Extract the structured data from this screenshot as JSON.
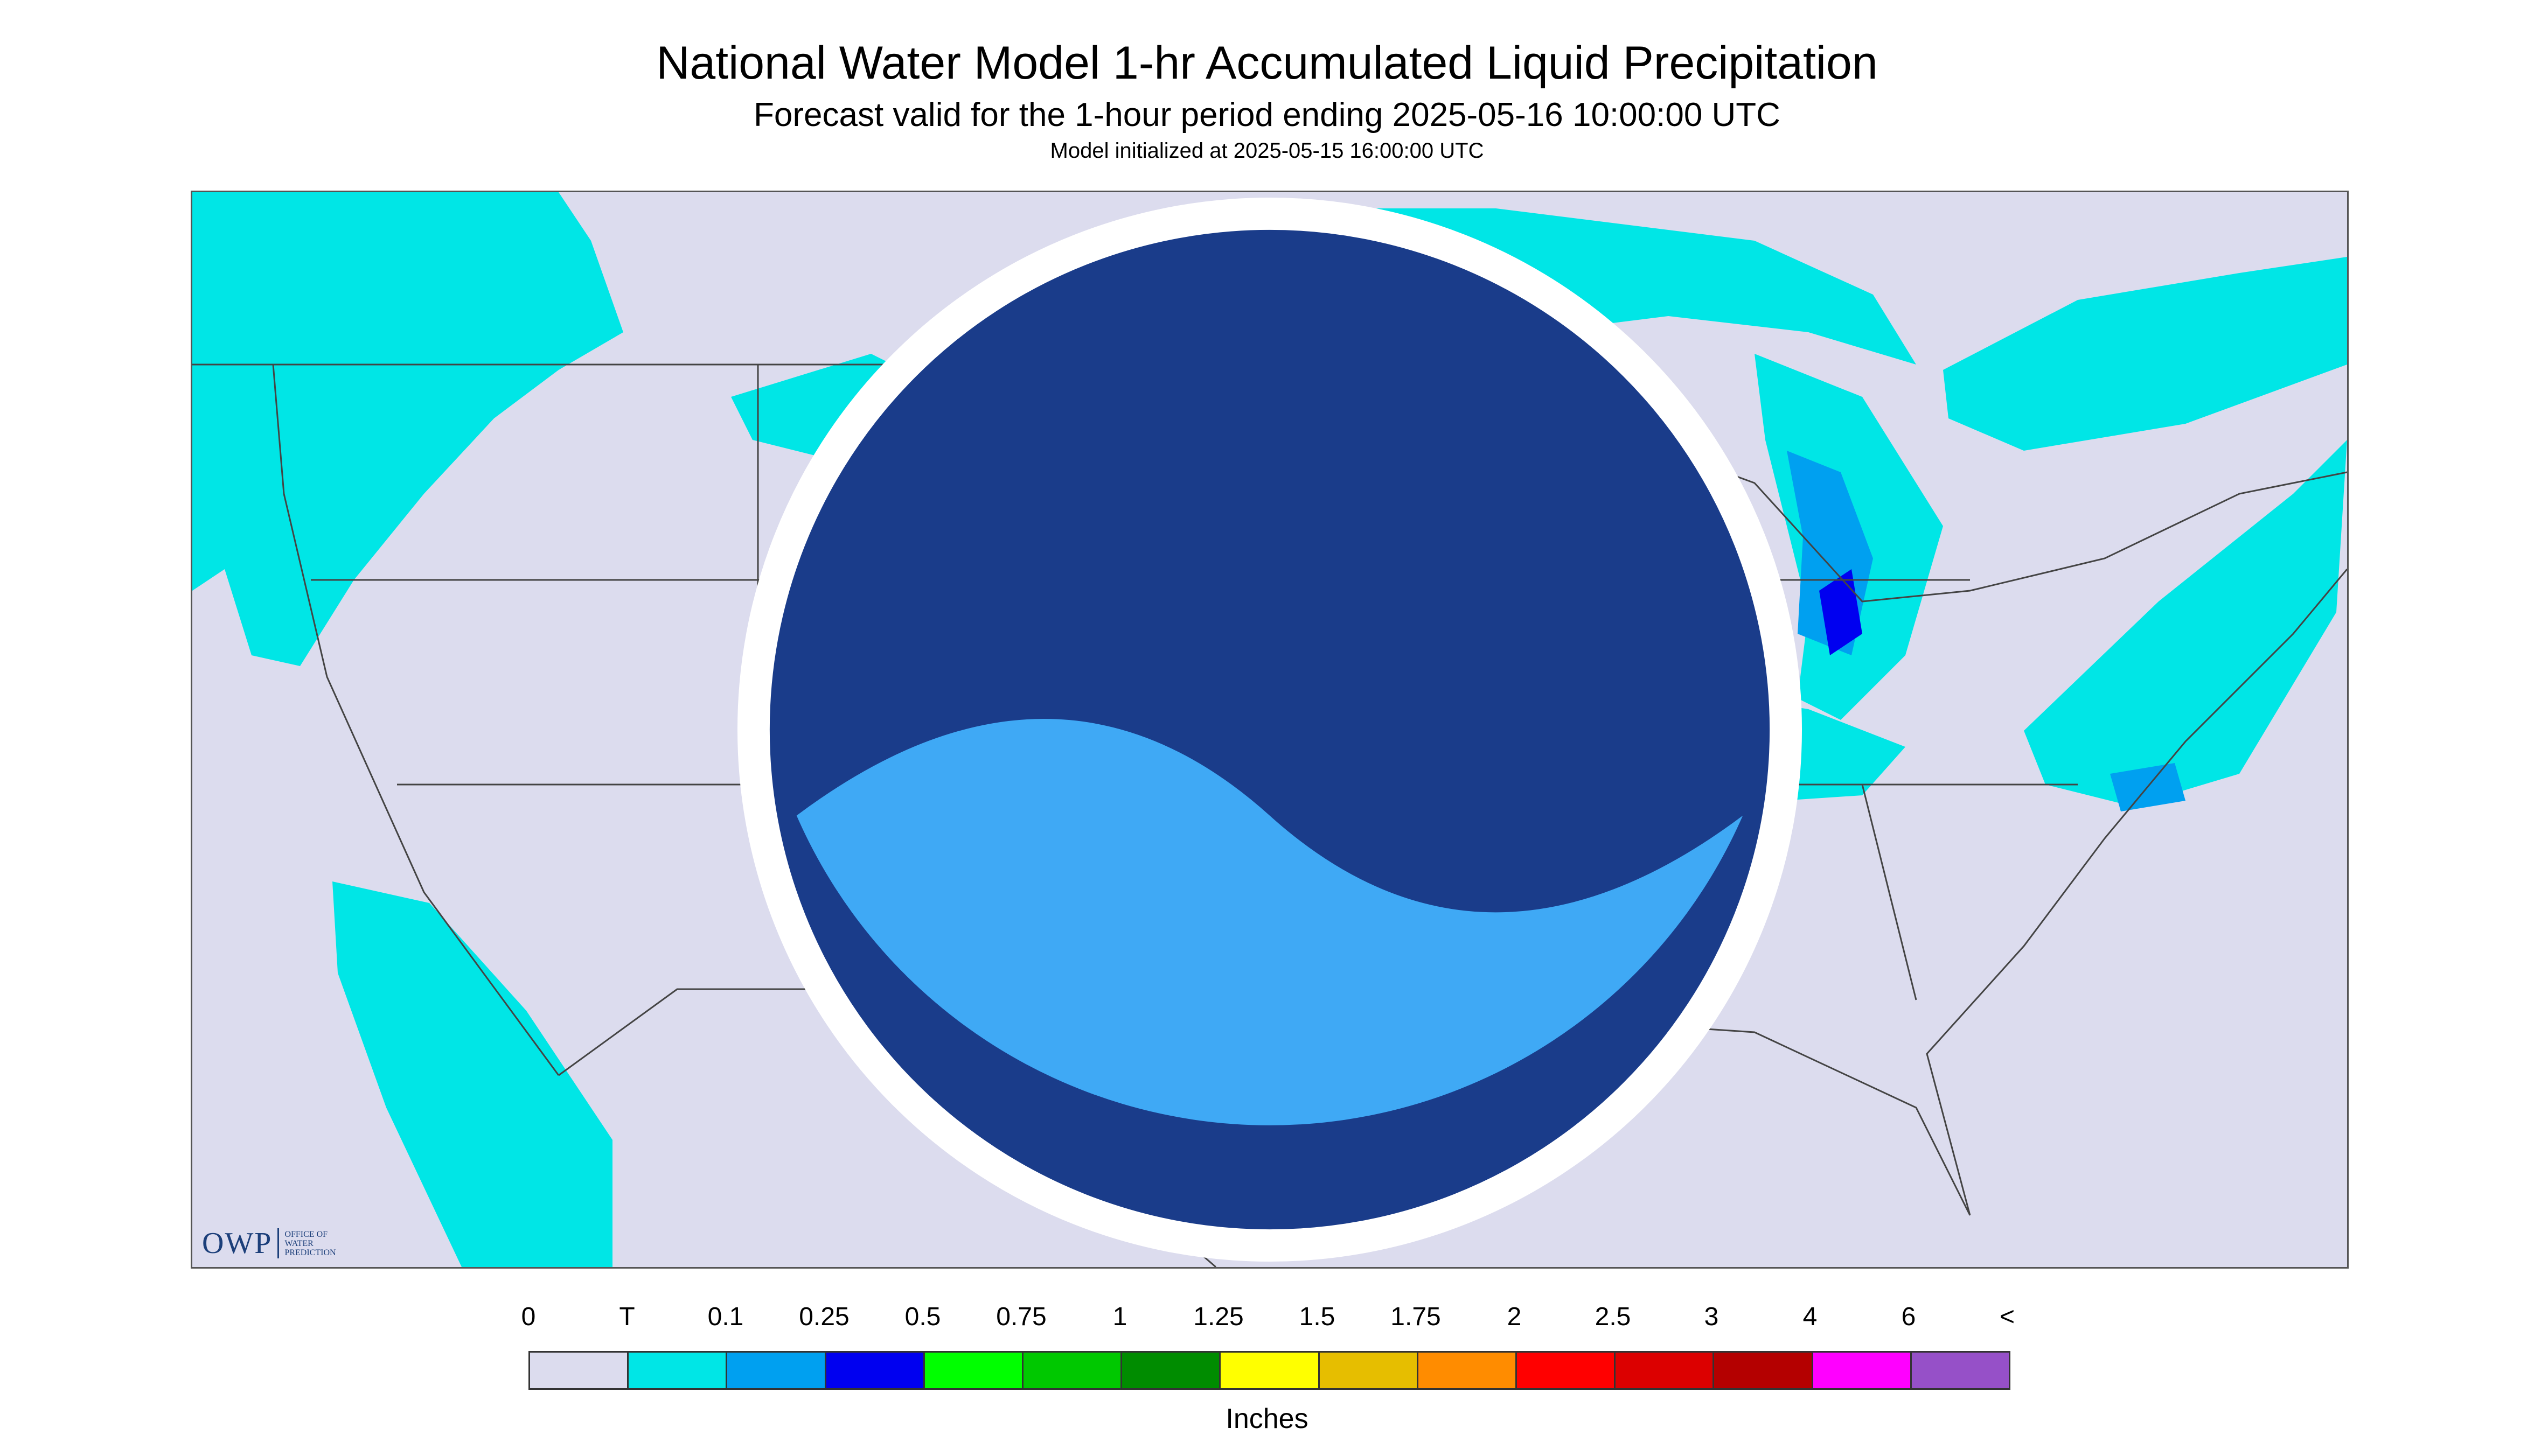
{
  "title": "National Water Model 1-hr Accumulated Liquid Precipitation",
  "subtitle": "Forecast valid for the 1-hour period ending 2025-05-16 10:00:00 UTC",
  "init_line": "Model initialized at 2025-05-15 16:00:00 UTC",
  "logo": {
    "mark": "OWP",
    "text": "OFFICE OF WATER PREDICTION",
    "agency_icon": "noaa-logo-icon"
  },
  "legend": {
    "tick_labels": [
      "0",
      "T",
      "0.1",
      "0.25",
      "0.5",
      "0.75",
      "1",
      "1.25",
      "1.5",
      "1.75",
      "2",
      "2.5",
      "3",
      "4",
      "6",
      "<"
    ],
    "colors": [
      "#dcdcee",
      "#00e6e6",
      "#00a0f0",
      "#0000f0",
      "#00ff00",
      "#00c800",
      "#008c00",
      "#ffff00",
      "#e6be00",
      "#ff8c00",
      "#ff0000",
      "#dc0000",
      "#b40000",
      "#ff00ff",
      "#9650c8"
    ],
    "units": "Inches"
  },
  "map": {
    "background_color": "#dcdcee",
    "precip_color_light": "#00e6e6",
    "precip_color_mid": "#00a0f0",
    "precip_color_heavy": "#0000f0"
  }
}
